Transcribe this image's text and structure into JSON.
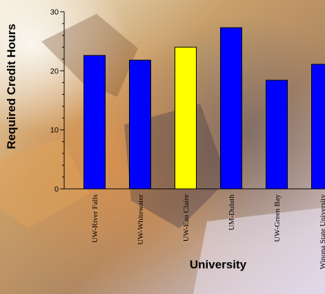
{
  "chart_data": {
    "type": "bar",
    "title": "",
    "xlabel": "University",
    "ylabel": "Required Credit Hours",
    "categories": [
      "UW-River Falls",
      "UW-Whitewater",
      "UW-Eau Claire",
      "UM-Duluth",
      "UW-Green Bay",
      "Winona State University"
    ],
    "values": [
      22.6,
      21.8,
      24.0,
      27.3,
      18.4,
      21.1
    ],
    "highlight_index": 2,
    "ylim": [
      0,
      30
    ],
    "yticks": [
      0,
      10,
      20,
      30
    ],
    "grid": false,
    "colors": {
      "bar": "#0000ff",
      "highlight": "#ffff00",
      "outline": "#000000"
    }
  }
}
